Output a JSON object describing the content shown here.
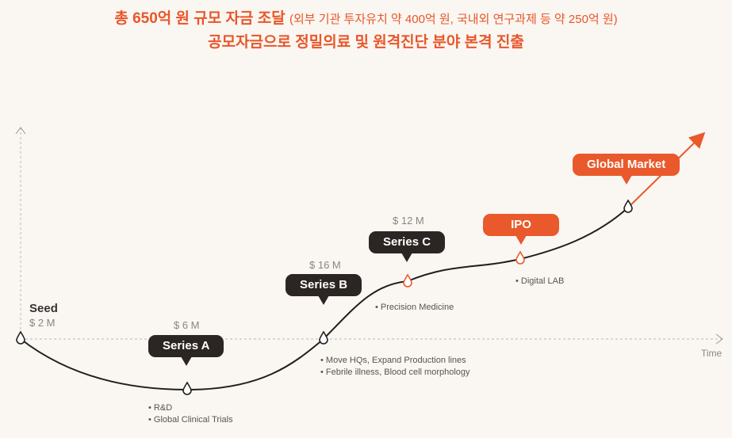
{
  "header": {
    "line1_main": "총 650억 원 규모 자금 조달",
    "line1_sub": "(외부 기관 투자유치 약 400억 원, 국내외 연구과제 등 약 250억 원)",
    "line2": "공모자금으로 정밀의료 및 원격진단 분야 본격 진출"
  },
  "axis": {
    "x_label": "Time"
  },
  "stages": {
    "seed": {
      "label": "Seed",
      "amount": "$ 2 M"
    },
    "series_a": {
      "label": "Series A",
      "amount": "$ 6 M",
      "notes": [
        "R&D",
        "Global Clinical Trials"
      ]
    },
    "series_b": {
      "label": "Series B",
      "amount": "$ 16 M",
      "notes": [
        "Move HQs, Expand Production lines",
        "Febrile illness, Blood cell morphology"
      ]
    },
    "series_c": {
      "label": "Series C",
      "amount": "$ 12 M",
      "notes": [
        "Precision Medicine"
      ]
    },
    "ipo": {
      "label": "IPO",
      "notes": [
        "Digital LAB"
      ]
    },
    "global": {
      "label": "Global Market"
    }
  },
  "colors": {
    "accent": "#e9592b",
    "dark": "#2b2523",
    "line": "#1f1f1f"
  }
}
